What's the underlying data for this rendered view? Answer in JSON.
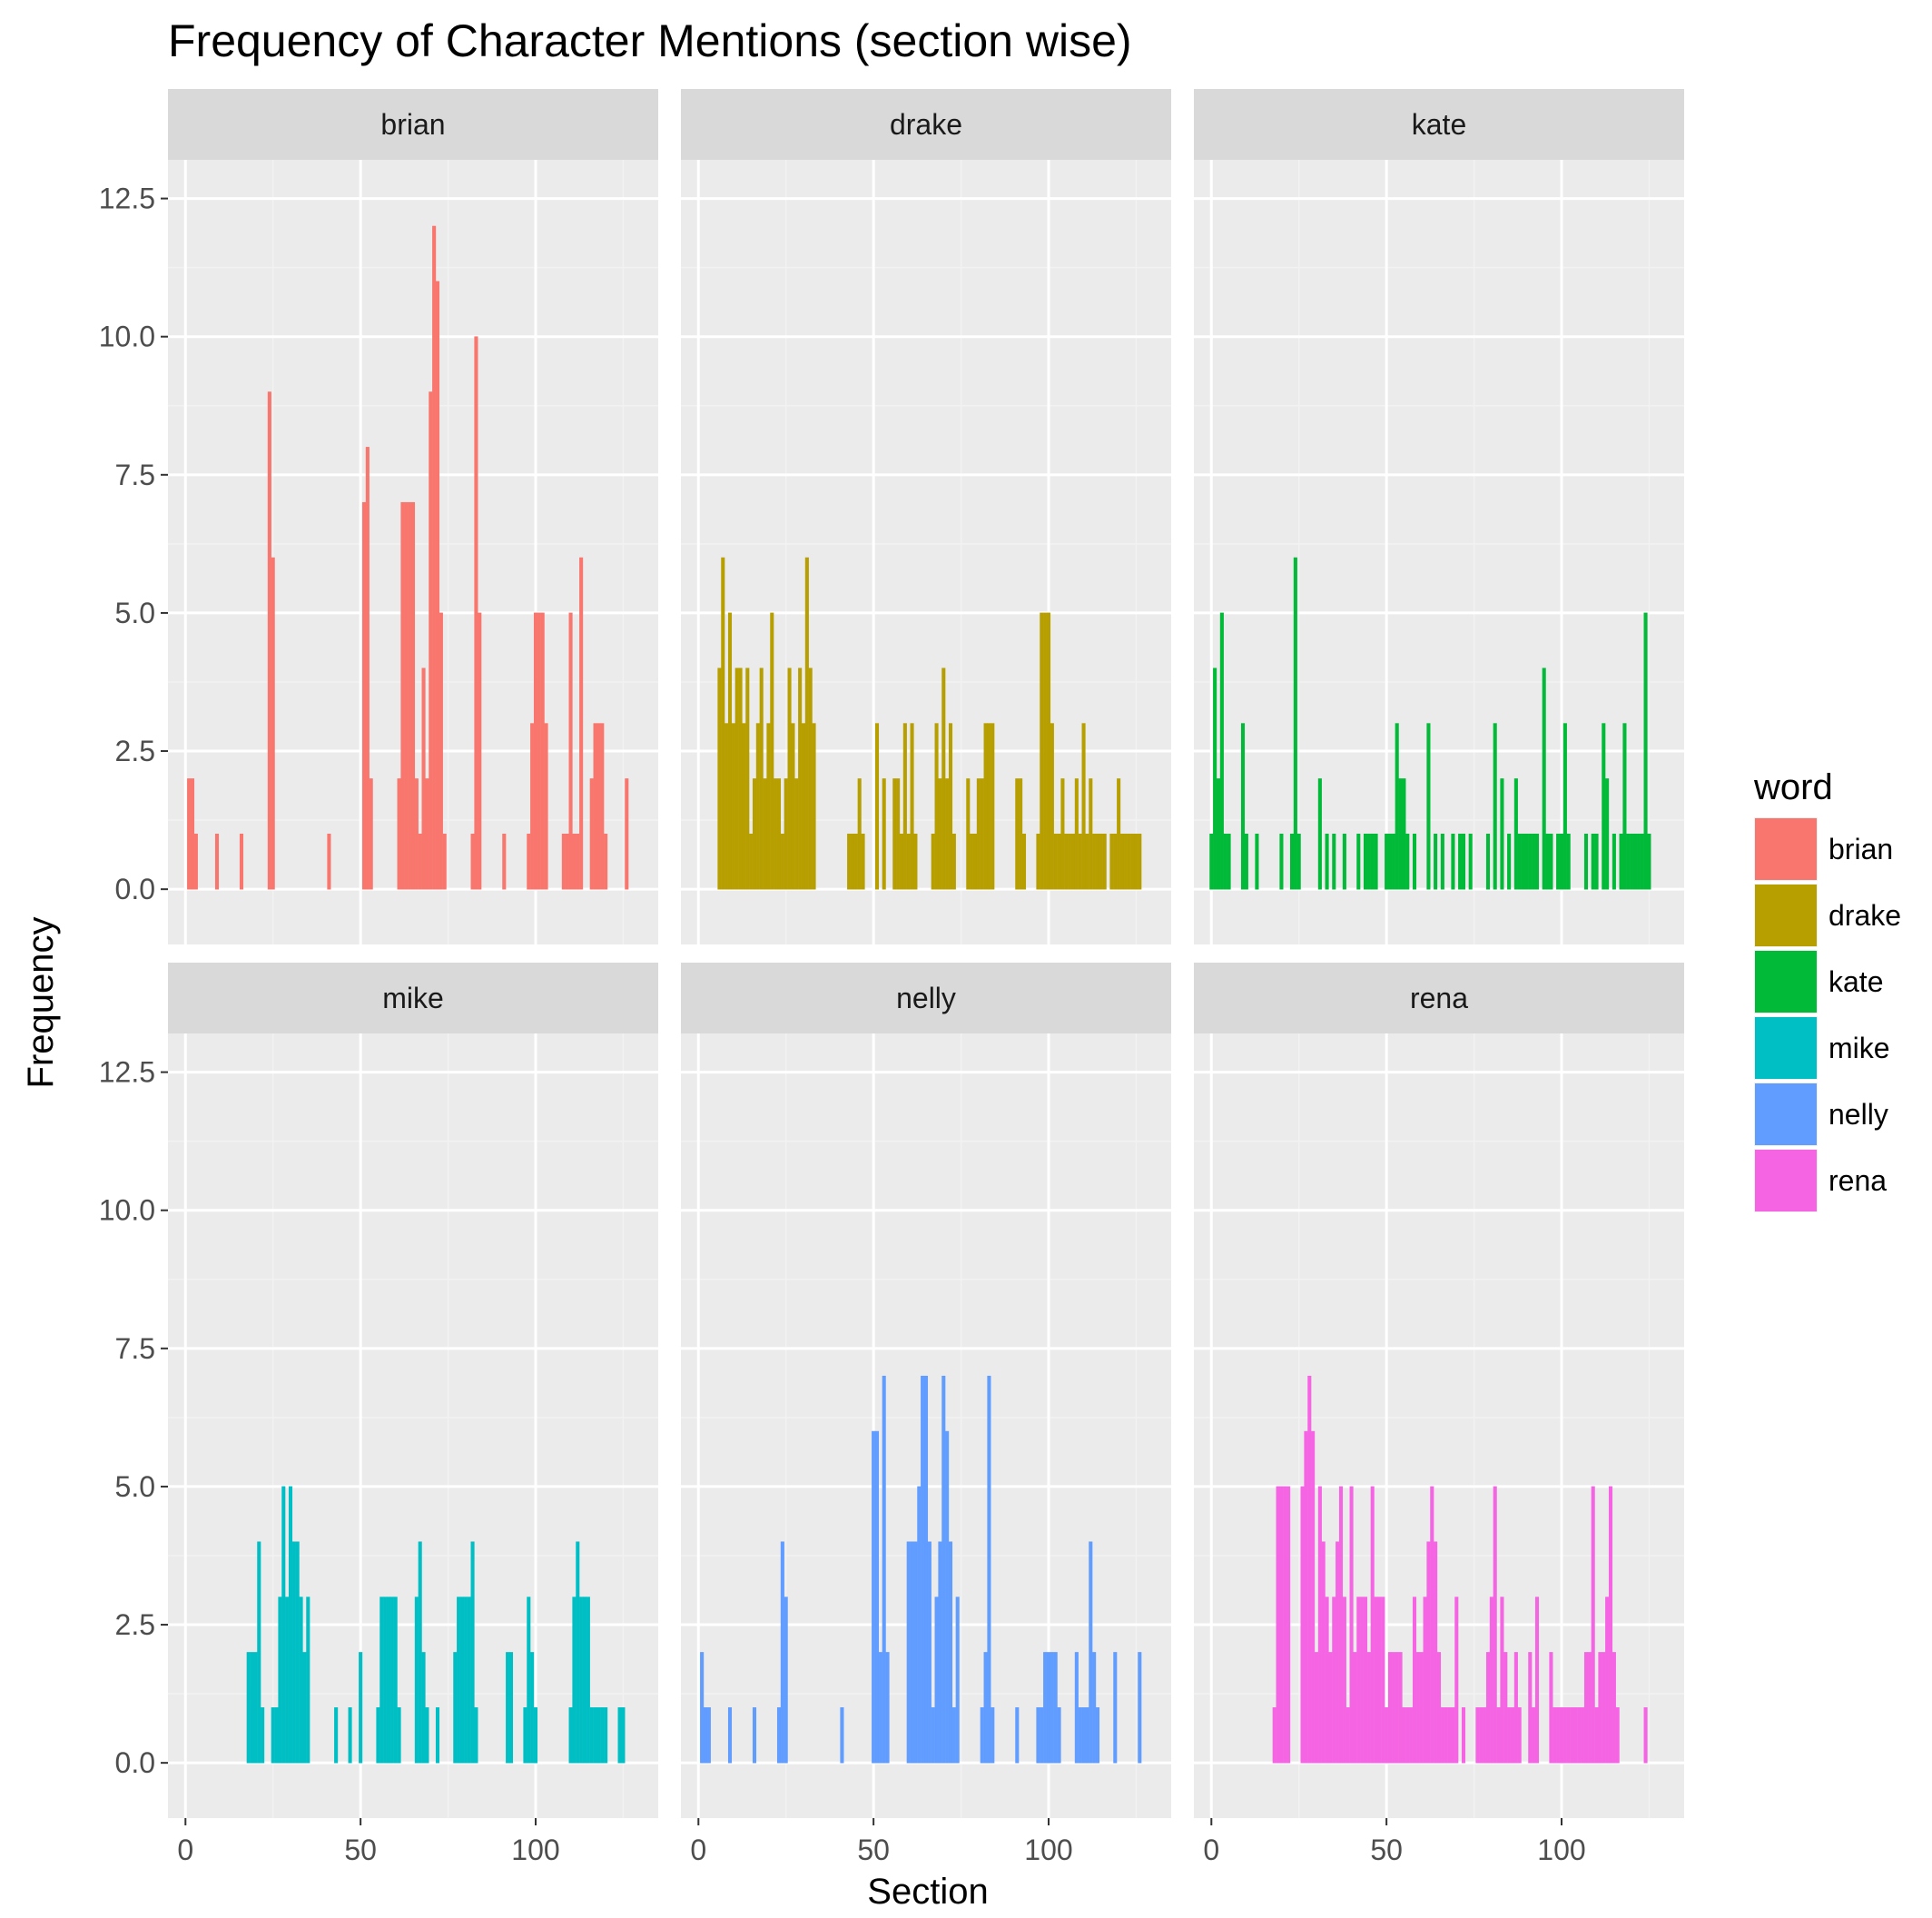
{
  "chart_data": {
    "type": "bar",
    "title": "Frequency of Character Mentions (section wise)",
    "xlabel": "Section",
    "ylabel": "Frequency",
    "xlim": [
      -5,
      135
    ],
    "ylim": [
      -1,
      13.2
    ],
    "x_ticks": [
      0,
      50,
      100
    ],
    "y_ticks": [
      0,
      2.5,
      5,
      7.5,
      10,
      12.5
    ],
    "x_tick_labels": [
      "0",
      "50",
      "100"
    ],
    "y_tick_labels": [
      "0.0",
      "2.5",
      "5.0",
      "7.5",
      "10.0",
      "12.5"
    ],
    "grid": true,
    "legend": {
      "title": "word",
      "position": "right"
    },
    "facets": [
      {
        "name": "brian",
        "color": "#F8766D",
        "x": [
          1,
          2,
          3,
          9,
          16,
          24,
          25,
          41,
          51,
          52,
          53,
          61,
          62,
          63,
          64,
          65,
          66,
          67,
          68,
          69,
          70,
          71,
          72,
          73,
          74,
          82,
          83,
          84,
          91,
          98,
          99,
          100,
          101,
          102,
          103,
          108,
          109,
          110,
          111,
          112,
          113,
          116,
          117,
          118,
          119,
          120,
          126
        ],
        "y": [
          2,
          2,
          1,
          1,
          1,
          9,
          6,
          1,
          7,
          8,
          2,
          2,
          7,
          7,
          7,
          7,
          2,
          1,
          4,
          2,
          9,
          12,
          11,
          5,
          1,
          1,
          10,
          5,
          1,
          1,
          3,
          5,
          5,
          5,
          3,
          1,
          1,
          5,
          1,
          1,
          6,
          2,
          3,
          3,
          3,
          1,
          2
        ]
      },
      {
        "name": "drake",
        "color": "#B79F00",
        "x": [
          6,
          7,
          8,
          9,
          10,
          11,
          12,
          13,
          14,
          15,
          16,
          17,
          18,
          19,
          20,
          21,
          22,
          23,
          24,
          25,
          26,
          27,
          28,
          29,
          30,
          31,
          32,
          33,
          43,
          44,
          45,
          46,
          47,
          51,
          53,
          56,
          57,
          58,
          59,
          60,
          61,
          62,
          67,
          68,
          69,
          70,
          71,
          72,
          73,
          77,
          78,
          79,
          80,
          81,
          82,
          83,
          84,
          91,
          92,
          93,
          97,
          98,
          99,
          100,
          101,
          102,
          103,
          104,
          105,
          106,
          107,
          108,
          109,
          110,
          111,
          112,
          113,
          114,
          115,
          116,
          118,
          119,
          120,
          121,
          122,
          123,
          124,
          125,
          126
        ],
        "y": [
          4,
          6,
          3,
          5,
          3,
          4,
          4,
          3,
          4,
          1,
          2,
          3,
          4,
          2,
          3,
          5,
          2,
          2,
          1,
          2,
          4,
          3,
          2,
          4,
          3,
          6,
          4,
          3,
          1,
          1,
          1,
          2,
          1,
          3,
          2,
          2,
          2,
          1,
          3,
          1,
          3,
          1,
          1,
          3,
          2,
          4,
          2,
          3,
          1,
          2,
          1,
          1,
          2,
          2,
          3,
          3,
          3,
          2,
          2,
          1,
          1,
          5,
          5,
          5,
          3,
          1,
          1,
          2,
          1,
          1,
          1,
          2,
          1,
          3,
          1,
          2,
          1,
          1,
          1,
          1,
          1,
          1,
          2,
          1,
          1,
          1,
          1,
          1,
          1
        ],
        "x_ticks_override": null
      },
      {
        "name": "kate",
        "color": "#00BA38",
        "x": [
          0,
          1,
          2,
          3,
          4,
          5,
          9,
          10,
          13,
          20,
          23,
          24,
          25,
          31,
          33,
          35,
          38,
          42,
          44,
          45,
          46,
          47,
          50,
          51,
          52,
          53,
          54,
          55,
          56,
          58,
          62,
          64,
          66,
          69,
          71,
          72,
          74,
          79,
          81,
          83,
          85,
          87,
          88,
          89,
          90,
          91,
          92,
          93,
          95,
          96,
          97,
          99,
          100,
          101,
          102,
          107,
          109,
          110,
          112,
          113,
          115,
          117,
          118,
          119,
          120,
          121,
          122,
          123,
          124,
          125
        ],
        "y": [
          1,
          4,
          2,
          5,
          1,
          1,
          3,
          1,
          1,
          1,
          1,
          6,
          1,
          2,
          1,
          1,
          1,
          1,
          1,
          1,
          1,
          1,
          1,
          1,
          1,
          3,
          2,
          2,
          1,
          1,
          3,
          1,
          1,
          1,
          1,
          1,
          1,
          1,
          3,
          2,
          1,
          2,
          1,
          1,
          1,
          1,
          1,
          1,
          4,
          1,
          1,
          1,
          1,
          3,
          1,
          1,
          1,
          1,
          3,
          2,
          1,
          1,
          3,
          1,
          1,
          1,
          1,
          1,
          5,
          1
        ],
        "x_ticks_override": null
      },
      {
        "name": "mike",
        "color": "#00BFC4",
        "x": [
          18,
          19,
          20,
          21,
          22,
          25,
          26,
          27,
          28,
          29,
          30,
          31,
          32,
          33,
          34,
          35,
          43,
          47,
          50,
          55,
          56,
          57,
          58,
          59,
          60,
          61,
          66,
          67,
          68,
          69,
          72,
          77,
          78,
          79,
          80,
          81,
          82,
          83,
          92,
          93,
          97,
          98,
          99,
          100,
          110,
          111,
          112,
          113,
          114,
          115,
          116,
          117,
          118,
          119,
          120,
          124,
          125
        ],
        "y": [
          2,
          2,
          2,
          4,
          1,
          1,
          1,
          3,
          5,
          3,
          5,
          4,
          4,
          3,
          2,
          3,
          1,
          1,
          2,
          1,
          3,
          3,
          3,
          3,
          3,
          1,
          3,
          4,
          2,
          1,
          1,
          2,
          3,
          3,
          3,
          3,
          4,
          1,
          2,
          2,
          1,
          3,
          2,
          1,
          1,
          3,
          4,
          3,
          3,
          3,
          1,
          1,
          1,
          1,
          1,
          1,
          1
        ],
        "x_ticks_override": null
      },
      {
        "name": "nelly",
        "color": "#619CFF",
        "x": [
          1,
          2,
          3,
          9,
          16,
          23,
          24,
          25,
          41,
          50,
          51,
          52,
          53,
          54,
          60,
          61,
          62,
          63,
          64,
          65,
          66,
          67,
          68,
          69,
          70,
          71,
          72,
          73,
          74,
          81,
          82,
          83,
          84,
          91,
          97,
          98,
          99,
          100,
          101,
          102,
          103,
          108,
          109,
          110,
          111,
          112,
          113,
          114,
          119,
          126
        ],
        "y": [
          2,
          1,
          1,
          1,
          1,
          1,
          4,
          3,
          1,
          6,
          6,
          2,
          7,
          2,
          4,
          4,
          4,
          5,
          7,
          7,
          4,
          1,
          3,
          4,
          7,
          6,
          4,
          1,
          3,
          1,
          2,
          7,
          1,
          1,
          1,
          1,
          2,
          2,
          2,
          2,
          1,
          2,
          1,
          1,
          1,
          4,
          2,
          1,
          2,
          2
        ]
      },
      {
        "name": "rena",
        "color": "#F564E3",
        "x": [
          18,
          19,
          20,
          21,
          22,
          26,
          27,
          28,
          29,
          30,
          31,
          32,
          33,
          34,
          35,
          36,
          37,
          38,
          39,
          40,
          41,
          42,
          43,
          44,
          45,
          46,
          47,
          48,
          49,
          50,
          51,
          52,
          53,
          54,
          55,
          56,
          57,
          58,
          59,
          60,
          61,
          62,
          63,
          64,
          65,
          66,
          67,
          68,
          69,
          70,
          72,
          76,
          77,
          78,
          79,
          80,
          81,
          82,
          83,
          84,
          85,
          86,
          87,
          88,
          91,
          92,
          93,
          97,
          98,
          99,
          100,
          101,
          102,
          103,
          104,
          105,
          106,
          107,
          108,
          109,
          110,
          111,
          112,
          113,
          114,
          115,
          116,
          124
        ],
        "y": [
          1,
          5,
          5,
          5,
          5,
          5,
          6,
          7,
          6,
          2,
          5,
          4,
          3,
          2,
          3,
          4,
          5,
          3,
          1,
          5,
          2,
          3,
          3,
          3,
          2,
          5,
          3,
          3,
          3,
          1,
          2,
          2,
          2,
          2,
          1,
          1,
          1,
          3,
          2,
          2,
          3,
          4,
          5,
          4,
          2,
          1,
          1,
          1,
          1,
          3,
          1,
          1,
          1,
          1,
          2,
          3,
          5,
          1,
          3,
          2,
          1,
          1,
          2,
          1,
          2,
          1,
          3,
          2,
          1,
          1,
          1,
          1,
          1,
          1,
          1,
          1,
          1,
          2,
          2,
          5,
          1,
          2,
          2,
          3,
          5,
          2,
          1,
          1
        ],
        "x_ticks_override": null
      }
    ]
  }
}
